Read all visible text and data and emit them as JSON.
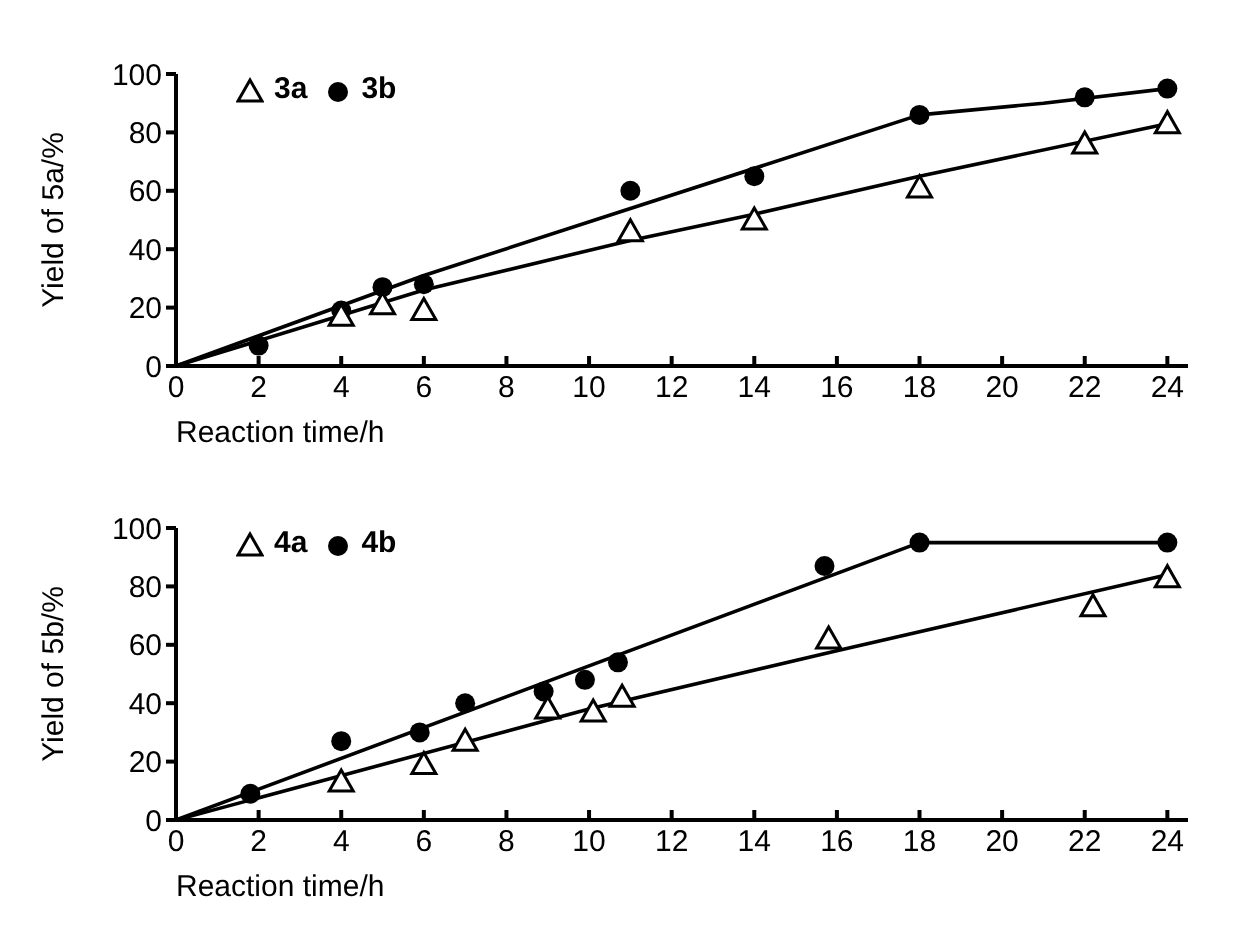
{
  "chart_data": [
    {
      "type": "scatter",
      "xlabel": "Reaction time/h",
      "ylabel": "Yield of 5a/%",
      "xlim": [
        0,
        24.5
      ],
      "ylim": [
        0,
        100
      ],
      "xticks": [
        0,
        2,
        4,
        6,
        8,
        10,
        12,
        14,
        16,
        18,
        20,
        22,
        24
      ],
      "yticks": [
        0,
        20,
        40,
        60,
        80,
        100
      ],
      "grid": false,
      "legend": "top left",
      "series": [
        {
          "name": "3a",
          "color": "#000000",
          "marker": "triangle",
          "x": [
            4,
            5,
            6,
            11,
            14,
            18,
            22,
            24
          ],
          "values": [
            17,
            21,
            19,
            46,
            50,
            61,
            76,
            83
          ]
        },
        {
          "name": "3b",
          "color": "#000000",
          "marker": "circle",
          "x": [
            2,
            4,
            5,
            6,
            11,
            14,
            18,
            22,
            24
          ],
          "values": [
            7,
            19,
            27,
            28,
            60,
            65,
            86,
            92,
            95
          ]
        },
        {
          "type": "line",
          "color": "#000000",
          "marker": "none",
          "x": [
            0,
            6,
            11,
            14,
            18,
            24
          ],
          "values": [
            0,
            26,
            43,
            52,
            65,
            83
          ]
        },
        {
          "type": "line",
          "color": "#000000",
          "marker": "none",
          "x": [
            0,
            6,
            18,
            21,
            24
          ],
          "values": [
            0,
            31,
            86,
            90,
            95
          ]
        }
      ]
    },
    {
      "type": "scatter",
      "xlabel": "Reaction time/h",
      "ylabel": "Yield of 5b/%",
      "xlim": [
        0,
        24.5
      ],
      "ylim": [
        0,
        100
      ],
      "xticks": [
        0,
        2,
        4,
        6,
        8,
        10,
        12,
        14,
        16,
        18,
        20,
        22,
        24
      ],
      "yticks": [
        0,
        20,
        40,
        60,
        80,
        100
      ],
      "grid": false,
      "legend": "top left",
      "series": [
        {
          "name": "4a",
          "color": "#000000",
          "marker": "triangle",
          "x": [
            4,
            6,
            7,
            9,
            10.1,
            10.8,
            15.8,
            22.2,
            24
          ],
          "values": [
            13,
            19,
            27,
            38,
            37,
            42,
            62,
            73,
            83
          ]
        },
        {
          "name": "4b",
          "color": "#000000",
          "marker": "circle",
          "x": [
            1.8,
            4,
            5.9,
            7,
            8.9,
            9.9,
            10.7,
            15.7,
            18,
            24
          ],
          "values": [
            9,
            27,
            30,
            40,
            44,
            48,
            54,
            87,
            95,
            95
          ]
        },
        {
          "type": "line",
          "color": "#000000",
          "marker": "none",
          "x": [
            0,
            10,
            16,
            24
          ],
          "values": [
            0,
            38,
            58,
            84
          ]
        },
        {
          "type": "line",
          "color": "#000000",
          "marker": "none",
          "x": [
            0,
            18,
            24
          ],
          "values": [
            0,
            95,
            95
          ]
        }
      ]
    }
  ]
}
